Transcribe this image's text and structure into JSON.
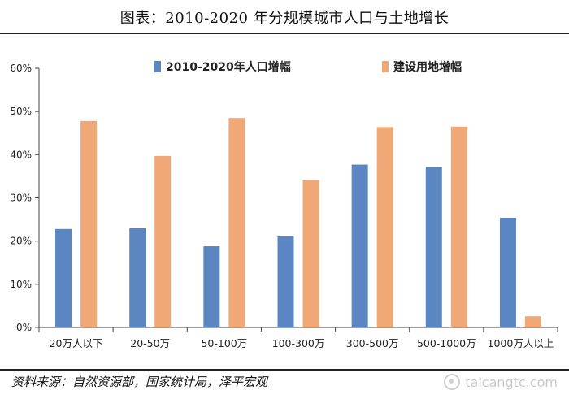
{
  "title": "图表：2010-2020 年分规模城市人口与土地增长",
  "source": "资料来源：自然资源部，国家统计局，泽平宏观",
  "watermark": "taicangtc.com",
  "colors": {
    "population": "#5B86C2",
    "land": "#F0A876",
    "axis": "#444444",
    "text": "#222222"
  },
  "chart_data": {
    "type": "bar",
    "categories": [
      "20万人以下",
      "20-50万",
      "50-100万",
      "100-300万",
      "300-500万",
      "500-1000万",
      "1000万人以上"
    ],
    "series": [
      {
        "name": "2010-2020年人口增幅",
        "values": [
          22.8,
          23.0,
          18.8,
          21.1,
          37.7,
          37.2,
          25.4
        ]
      },
      {
        "name": "建设用地增幅",
        "values": [
          47.8,
          39.7,
          48.5,
          34.2,
          46.4,
          46.5,
          2.6
        ]
      }
    ],
    "ylim": [
      0,
      60
    ],
    "yticks": [
      "0%",
      "10%",
      "20%",
      "30%",
      "40%",
      "50%",
      "60%"
    ],
    "grid": false,
    "legend": "top"
  }
}
